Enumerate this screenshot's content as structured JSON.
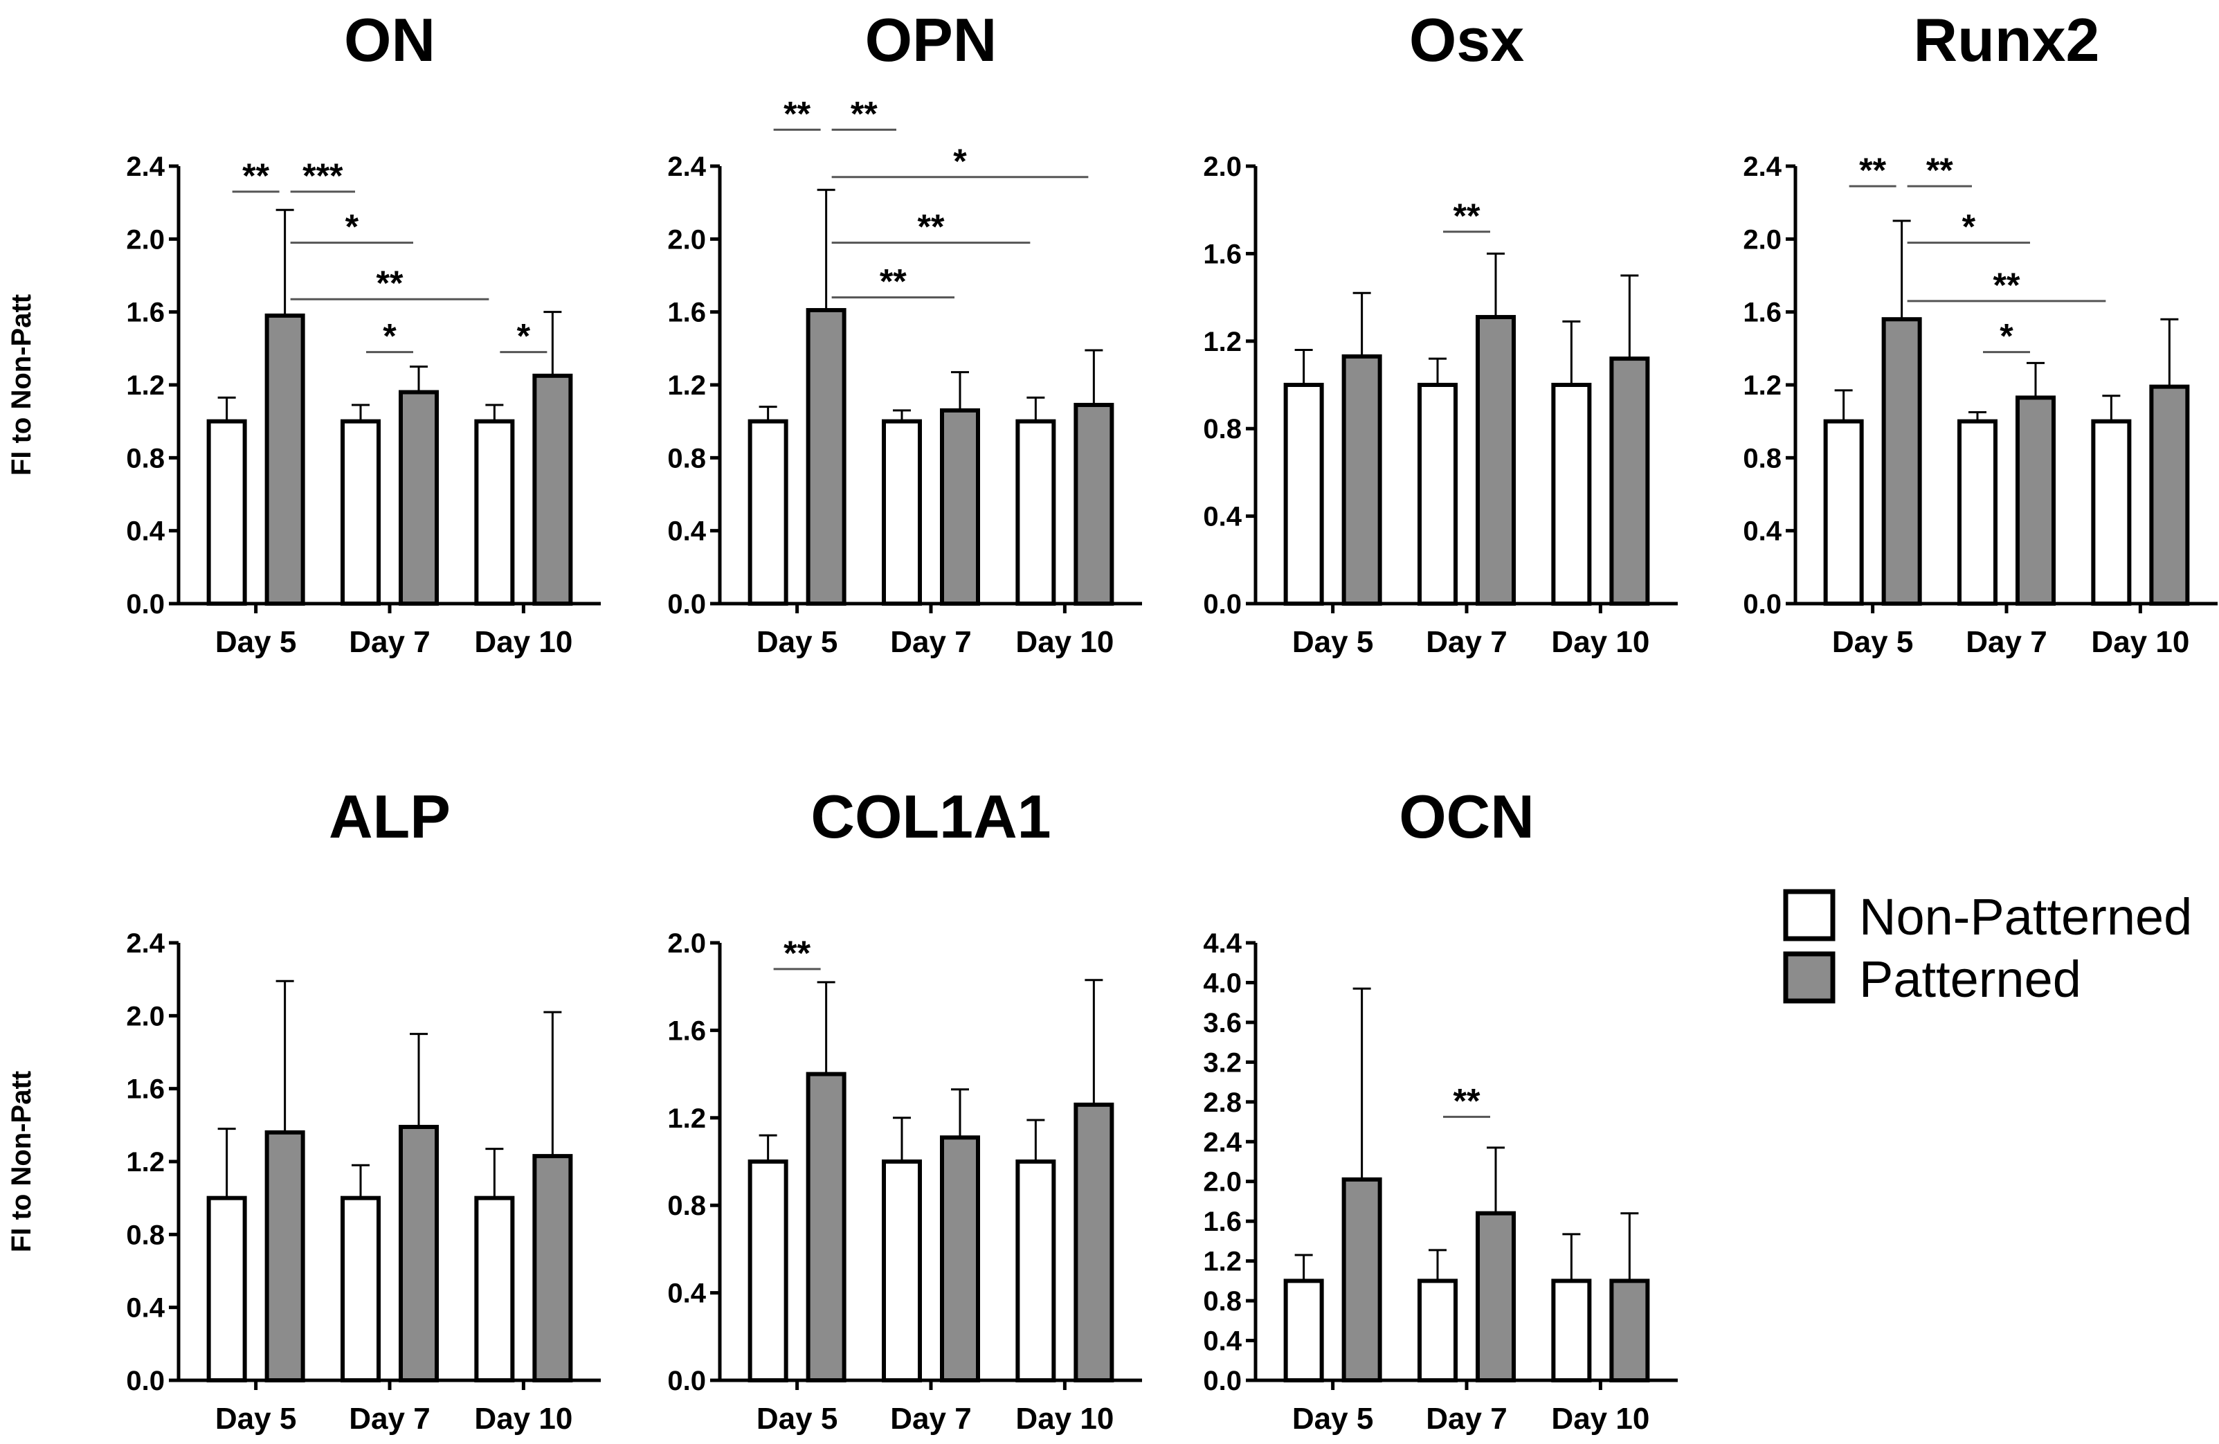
{
  "legend": {
    "non_patterned": "Non-Patterned",
    "patterned": "Patterned",
    "colors": {
      "non_patterned": "#ffffff",
      "patterned": "#8c8c8c"
    }
  },
  "chart_data": [
    {
      "type": "bar",
      "title": "ON",
      "ylabel": "FI to Non-Patt",
      "categories": [
        "Day 5",
        "Day 7",
        "Day 10"
      ],
      "ylim": [
        0,
        2.4
      ],
      "yticks": [
        "0.0",
        "0.4",
        "0.8",
        "1.2",
        "1.6",
        "2.0",
        "2.4"
      ],
      "series": [
        {
          "name": "Non-Patterned",
          "values": [
            1.0,
            1.0,
            1.0
          ],
          "errors": [
            0.13,
            0.09,
            0.09
          ]
        },
        {
          "name": "Patterned",
          "values": [
            1.58,
            1.16,
            1.25
          ],
          "errors": [
            0.58,
            0.14,
            0.35
          ]
        }
      ],
      "annotations": [
        {
          "text": "**",
          "from": [
            0,
            0
          ],
          "to": [
            0,
            1
          ],
          "y": 2.26
        },
        {
          "text": "***",
          "from": [
            0,
            1
          ],
          "to": [
            1,
            0
          ],
          "y": 2.26
        },
        {
          "text": "*",
          "from": [
            0,
            1
          ],
          "to": [
            1,
            1
          ],
          "y": 1.98
        },
        {
          "text": "**",
          "from": [
            0,
            1
          ],
          "to": [
            2,
            0
          ],
          "y": 1.67
        },
        {
          "text": "*",
          "from": [
            1,
            0
          ],
          "to": [
            1,
            1
          ],
          "y": 1.38
        },
        {
          "text": "*",
          "from": [
            2,
            0
          ],
          "to": [
            2,
            1
          ],
          "y": 1.38
        }
      ]
    },
    {
      "type": "bar",
      "title": "OPN",
      "ylabel": "",
      "categories": [
        "Day 5",
        "Day 7",
        "Day 10"
      ],
      "ylim": [
        0,
        2.4
      ],
      "yticks": [
        "0.0",
        "0.4",
        "0.8",
        "1.2",
        "1.6",
        "2.0",
        "2.4"
      ],
      "series": [
        {
          "name": "Non-Patterned",
          "values": [
            1.0,
            1.0,
            1.0
          ],
          "errors": [
            0.08,
            0.06,
            0.13
          ]
        },
        {
          "name": "Patterned",
          "values": [
            1.61,
            1.06,
            1.09
          ],
          "errors": [
            0.66,
            0.21,
            0.3
          ]
        }
      ],
      "annotations": [
        {
          "text": "**",
          "from": [
            0,
            0
          ],
          "to": [
            0,
            1
          ],
          "y": 2.6
        },
        {
          "text": "**",
          "from": [
            0,
            1
          ],
          "to": [
            1,
            0
          ],
          "y": 2.6
        },
        {
          "text": "*",
          "from": [
            0,
            1
          ],
          "to": [
            2,
            1
          ],
          "y": 2.34
        },
        {
          "text": "**",
          "from": [
            0,
            1
          ],
          "to": [
            2,
            0
          ],
          "y": 1.98
        },
        {
          "text": "**",
          "from": [
            0,
            1
          ],
          "to": [
            1,
            1
          ],
          "y": 1.68
        }
      ]
    },
    {
      "type": "bar",
      "title": "Osx",
      "ylabel": "",
      "categories": [
        "Day 5",
        "Day 7",
        "Day 10"
      ],
      "ylim": [
        0,
        2.0
      ],
      "yticks": [
        "0.0",
        "0.4",
        "0.8",
        "1.2",
        "1.6",
        "2.0"
      ],
      "series": [
        {
          "name": "Non-Patterned",
          "values": [
            1.0,
            1.0,
            1.0
          ],
          "errors": [
            0.16,
            0.12,
            0.29
          ]
        },
        {
          "name": "Patterned",
          "values": [
            1.13,
            1.31,
            1.12
          ],
          "errors": [
            0.29,
            0.29,
            0.38
          ]
        }
      ],
      "annotations": [
        {
          "text": "**",
          "from": [
            1,
            0
          ],
          "to": [
            1,
            1
          ],
          "y": 1.7
        }
      ]
    },
    {
      "type": "bar",
      "title": "Runx2",
      "ylabel": "",
      "categories": [
        "Day 5",
        "Day 7",
        "Day 10"
      ],
      "ylim": [
        0,
        2.4
      ],
      "yticks": [
        "0.0",
        "0.4",
        "0.8",
        "1.2",
        "1.6",
        "2.0",
        "2.4"
      ],
      "series": [
        {
          "name": "Non-Patterned",
          "values": [
            1.0,
            1.0,
            1.0
          ],
          "errors": [
            0.17,
            0.05,
            0.14
          ]
        },
        {
          "name": "Patterned",
          "values": [
            1.56,
            1.13,
            1.19
          ],
          "errors": [
            0.54,
            0.19,
            0.37
          ]
        }
      ],
      "annotations": [
        {
          "text": "**",
          "from": [
            0,
            0
          ],
          "to": [
            0,
            1
          ],
          "y": 2.29
        },
        {
          "text": "**",
          "from": [
            0,
            1
          ],
          "to": [
            1,
            0
          ],
          "y": 2.29
        },
        {
          "text": "*",
          "from": [
            0,
            1
          ],
          "to": [
            1,
            1
          ],
          "y": 1.98
        },
        {
          "text": "**",
          "from": [
            0,
            1
          ],
          "to": [
            2,
            0
          ],
          "y": 1.66
        },
        {
          "text": "*",
          "from": [
            1,
            0
          ],
          "to": [
            1,
            1
          ],
          "y": 1.38
        }
      ]
    },
    {
      "type": "bar",
      "title": "ALP",
      "ylabel": "FI to Non-Patt",
      "categories": [
        "Day 5",
        "Day 7",
        "Day 10"
      ],
      "ylim": [
        0,
        2.4
      ],
      "yticks": [
        "0.0",
        "0.4",
        "0.8",
        "1.2",
        "1.6",
        "2.0",
        "2.4"
      ],
      "series": [
        {
          "name": "Non-Patterned",
          "values": [
            1.0,
            1.0,
            1.0
          ],
          "errors": [
            0.38,
            0.18,
            0.27
          ]
        },
        {
          "name": "Patterned",
          "values": [
            1.36,
            1.39,
            1.23
          ],
          "errors": [
            0.83,
            0.51,
            0.79
          ]
        }
      ],
      "annotations": []
    },
    {
      "type": "bar",
      "title": "COL1A1",
      "ylabel": "",
      "categories": [
        "Day 5",
        "Day 7",
        "Day 10"
      ],
      "ylim": [
        0,
        2.0
      ],
      "yticks": [
        "0.0",
        "0.4",
        "0.8",
        "1.2",
        "1.6",
        "2.0"
      ],
      "series": [
        {
          "name": "Non-Patterned",
          "values": [
            1.0,
            1.0,
            1.0
          ],
          "errors": [
            0.12,
            0.2,
            0.19
          ]
        },
        {
          "name": "Patterned",
          "values": [
            1.4,
            1.11,
            1.26
          ],
          "errors": [
            0.42,
            0.22,
            0.57
          ]
        }
      ],
      "annotations": [
        {
          "text": "**",
          "from": [
            0,
            0
          ],
          "to": [
            0,
            1
          ],
          "y": 1.88
        }
      ]
    },
    {
      "type": "bar",
      "title": "OCN",
      "ylabel": "",
      "categories": [
        "Day 5",
        "Day 7",
        "Day 10"
      ],
      "ylim": [
        0,
        4.4
      ],
      "yticks": [
        "0.0",
        "0.4",
        "0.8",
        "1.2",
        "1.6",
        "2.0",
        "2.4",
        "2.8",
        "3.2",
        "3.6",
        "4.0",
        "4.4"
      ],
      "series": [
        {
          "name": "Non-Patterned",
          "values": [
            1.0,
            1.0,
            1.0
          ],
          "errors": [
            0.26,
            0.31,
            0.47
          ]
        },
        {
          "name": "Patterned",
          "values": [
            2.02,
            1.68,
            1.0
          ],
          "errors": [
            1.92,
            0.66,
            0.68
          ]
        }
      ],
      "annotations": [
        {
          "text": "**",
          "from": [
            1,
            0
          ],
          "to": [
            1,
            1
          ],
          "y": 2.65
        }
      ]
    }
  ]
}
